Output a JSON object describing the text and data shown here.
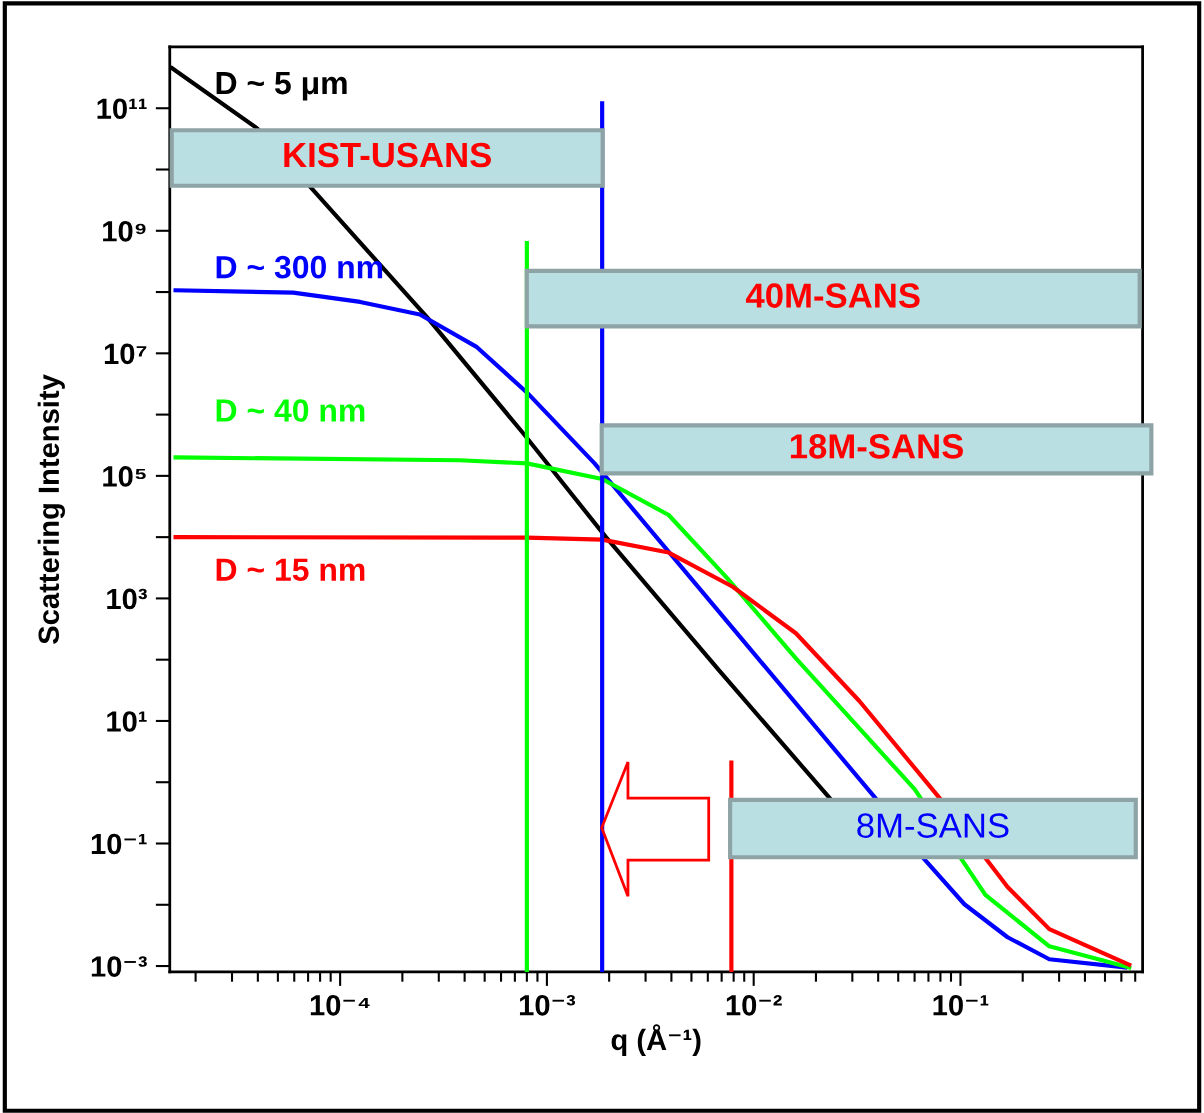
{
  "chart_data": {
    "type": "line",
    "xlabel": "q (Å⁻¹)",
    "ylabel": "Scattering Intensity",
    "log": "xy",
    "grid": false,
    "marker": "none",
    "line_style": "solid",
    "xlim": [
      1.5e-05,
      0.76
    ],
    "ylim": [
      0.0008,
      1000000000000.0
    ],
    "xticks": [
      {
        "value": 2e-05,
        "label": null
      },
      {
        "value": 3e-05,
        "label": null
      },
      {
        "value": 4e-05,
        "label": null
      },
      {
        "value": 5e-05,
        "label": null
      },
      {
        "value": 6e-05,
        "label": null
      },
      {
        "value": 7e-05,
        "label": null
      },
      {
        "value": 8e-05,
        "label": null
      },
      {
        "value": 9e-05,
        "label": null
      },
      {
        "value": 0.0001,
        "label": "10⁻⁴"
      },
      {
        "value": 0.0002,
        "label": null
      },
      {
        "value": 0.0003,
        "label": null
      },
      {
        "value": 0.0004,
        "label": null
      },
      {
        "value": 0.0005,
        "label": null
      },
      {
        "value": 0.0006,
        "label": null
      },
      {
        "value": 0.0007,
        "label": null
      },
      {
        "value": 0.0008,
        "label": null
      },
      {
        "value": 0.0009,
        "label": null
      },
      {
        "value": 0.001,
        "label": "10⁻³"
      },
      {
        "value": 0.002,
        "label": null
      },
      {
        "value": 0.003,
        "label": null
      },
      {
        "value": 0.004,
        "label": null
      },
      {
        "value": 0.005,
        "label": null
      },
      {
        "value": 0.006,
        "label": null
      },
      {
        "value": 0.007,
        "label": null
      },
      {
        "value": 0.008,
        "label": null
      },
      {
        "value": 0.009,
        "label": null
      },
      {
        "value": 0.01,
        "label": "10⁻²"
      },
      {
        "value": 0.02,
        "label": null
      },
      {
        "value": 0.03,
        "label": null
      },
      {
        "value": 0.04,
        "label": null
      },
      {
        "value": 0.05,
        "label": null
      },
      {
        "value": 0.06,
        "label": null
      },
      {
        "value": 0.07,
        "label": null
      },
      {
        "value": 0.08,
        "label": null
      },
      {
        "value": 0.09,
        "label": null
      },
      {
        "value": 0.1,
        "label": "10⁻¹"
      },
      {
        "value": 0.2,
        "label": null
      },
      {
        "value": 0.3,
        "label": null
      },
      {
        "value": 0.4,
        "label": null
      },
      {
        "value": 0.5,
        "label": null
      },
      {
        "value": 0.6,
        "label": null
      },
      {
        "value": 0.7,
        "label": null
      }
    ],
    "yticks": [
      {
        "value": 0.001,
        "label": "10⁻³"
      },
      {
        "value": 0.01,
        "label": null
      },
      {
        "value": 0.1,
        "label": "10⁻¹"
      },
      {
        "value": 1,
        "label": null
      },
      {
        "value": 10,
        "label": "10¹"
      },
      {
        "value": 100,
        "label": null
      },
      {
        "value": 1000,
        "label": "10³"
      },
      {
        "value": 10000,
        "label": null
      },
      {
        "value": 100000,
        "label": "10⁵"
      },
      {
        "value": 1000000,
        "label": null
      },
      {
        "value": 10000000,
        "label": "10⁷"
      },
      {
        "value": 100000000,
        "label": null
      },
      {
        "value": 1000000000,
        "label": "10⁹"
      },
      {
        "value": 10000000000,
        "label": null
      },
      {
        "value": 100000000000,
        "label": "10¹¹"
      }
    ],
    "series": [
      {
        "name": "D ~ 5 μm",
        "color": "#000000",
        "x": [
          1.54e-05,
          3.97e-05,
          7.41e-05,
          0.000263,
          0.000766,
          0.00193,
          0.00685,
          0.0233
        ],
        "values": [
          450000000000.0,
          47000000000.0,
          4600000000.0,
          39000000.0,
          500000.0,
          10000.0,
          65,
          0.55
        ]
      },
      {
        "name": "D ~ 300 nm",
        "color": "#0000ff",
        "x": [
          1.6e-05,
          5.93e-05,
          0.000125,
          0.000243,
          0.000459,
          0.0008,
          0.0017,
          0.00855,
          0.0388,
          0.0655,
          0.1045,
          0.169,
          0.269,
          0.627
        ],
        "values": [
          107000000.0,
          98000000.0,
          69000000.0,
          43000000.0,
          12600000.0,
          2300000.0,
          160000.0,
          240,
          0.55,
          0.06,
          0.0102,
          0.00295,
          0.00129,
          0.00095
        ]
      },
      {
        "name": "D ~ 40 nm",
        "color": "#00ff00",
        "x": [
          1.6e-05,
          0.00038,
          0.0008,
          0.00185,
          0.00388,
          0.00748,
          0.016,
          0.06,
          0.132,
          0.269,
          0.655
        ],
        "values": [
          200000.0,
          180000.0,
          160000.0,
          89000.0,
          23000.0,
          2100,
          105,
          0.77,
          0.0145,
          0.0021,
          0.00095
        ]
      },
      {
        "name": "D ~ 15 nm",
        "color": "#ff0000",
        "x": [
          1.6e-05,
          0.0008,
          0.00185,
          0.00388,
          0.00792,
          0.016,
          0.0325,
          0.0793,
          0.169,
          0.269,
          0.655
        ],
        "values": [
          10000.0,
          9800.0,
          9100.0,
          5600.0,
          1550,
          270,
          21,
          0.55,
          0.0195,
          0.004,
          0.00105
        ]
      },
      {
        "color": "#00ff00",
        "x": [
          0.0008,
          0.0008
        ],
        "values": [
          630000000.0,
          0.0008
        ]
      },
      {
        "color": "#0000ff",
        "x": [
          0.00185,
          0.00185
        ],
        "values": [
          120000000000.0,
          0.0008
        ]
      },
      {
        "color": "#ff0000",
        "x": [
          0.0078,
          0.0078
        ],
        "values": [
          2.1,
          0.0008
        ]
      }
    ],
    "annotations": [
      "KIST-USANS",
      "40M-SANS",
      "18M-SANS",
      "8M-SANS"
    ]
  }
}
